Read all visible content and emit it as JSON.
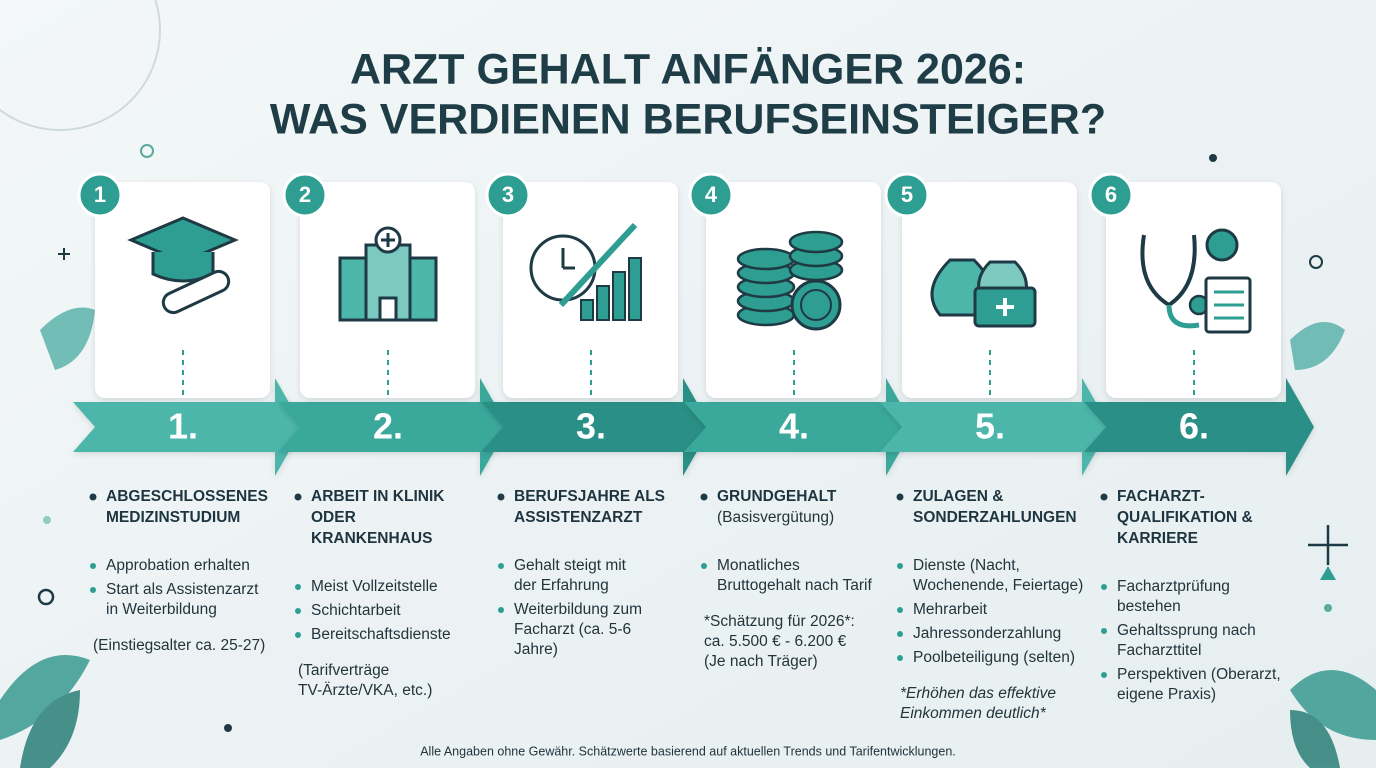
{
  "title": [
    "ARZT GEHALT ANFÄNGER 2026:",
    "WAS VERDIENEN BERUFSEINSTEIGER?"
  ],
  "steps": [
    {
      "badge": "1",
      "arrow": "1.",
      "heading": [
        "ABGESCHLOSSENES",
        "MEDIZINSTUDIUM"
      ],
      "items": [
        [
          "Approbation erhalten"
        ],
        [
          "Start als Assistenzarzt",
          "in Weiterbildung"
        ]
      ],
      "note": [
        "(Einstiegsalter ca. 25-27)"
      ]
    },
    {
      "badge": "2",
      "arrow": "2.",
      "heading": [
        "ARBEIT IN KLINIK",
        "ODER",
        "KRANKENHAUS"
      ],
      "items": [
        [
          "Meist Vollzeitstelle"
        ],
        [
          "Schichtarbeit"
        ],
        [
          "Bereitschaftsdienste"
        ]
      ],
      "note": [
        "(Tarifverträge",
        "TV-Ärzte/VKA, etc.)"
      ]
    },
    {
      "badge": "3",
      "arrow": "3.",
      "heading": [
        "BERUFSJAHRE ALS",
        "ASSISTENZARZT"
      ],
      "items": [
        [
          "Gehalt steigt mit",
          "der Erfahrung"
        ],
        [
          "Weiterbildung zum",
          "Facharzt (ca. 5-6",
          "Jahre)"
        ]
      ]
    },
    {
      "badge": "4",
      "arrow": "4.",
      "heading": [
        "GRUNDGEHALT"
      ],
      "subheading": "(Basisvergütung)",
      "items": [
        [
          "Monatliches",
          "Bruttogehalt nach Tarif"
        ]
      ],
      "note": [
        "*Schätzung für 2026*:",
        "ca. 5.500 € - 6.200 €",
        "(Je nach Träger)"
      ]
    },
    {
      "badge": "5",
      "arrow": "5.",
      "heading": [
        "ZULAGEN &",
        "SONDERZAHLUNGEN"
      ],
      "items": [
        [
          "Dienste (Nacht,",
          "Wochenende, Feiertage)"
        ],
        [
          "Mehrarbeit"
        ],
        [
          "Jahressonderzahlung"
        ],
        [
          "Poolbeteiligung (selten)"
        ]
      ],
      "note": [
        "*Erhöhen das effektive",
        "Einkommen deutlich*"
      ],
      "note_italic": true
    },
    {
      "badge": "6",
      "arrow": "6.",
      "heading": [
        "FACHARZT-",
        "QUALIFIKATION &",
        "KARRIERE"
      ],
      "items": [
        [
          "Facharztprüfung",
          "bestehen"
        ],
        [
          "Gehaltssprung nach",
          "Facharzttitel"
        ],
        [
          "Perspektiven (Oberarzt,",
          "eigene Praxis)"
        ]
      ]
    }
  ],
  "footer": "Alle Angaben ohne Gewähr. Schätzwerte basierend auf aktuellen Trends und Tarifentwicklungen."
}
